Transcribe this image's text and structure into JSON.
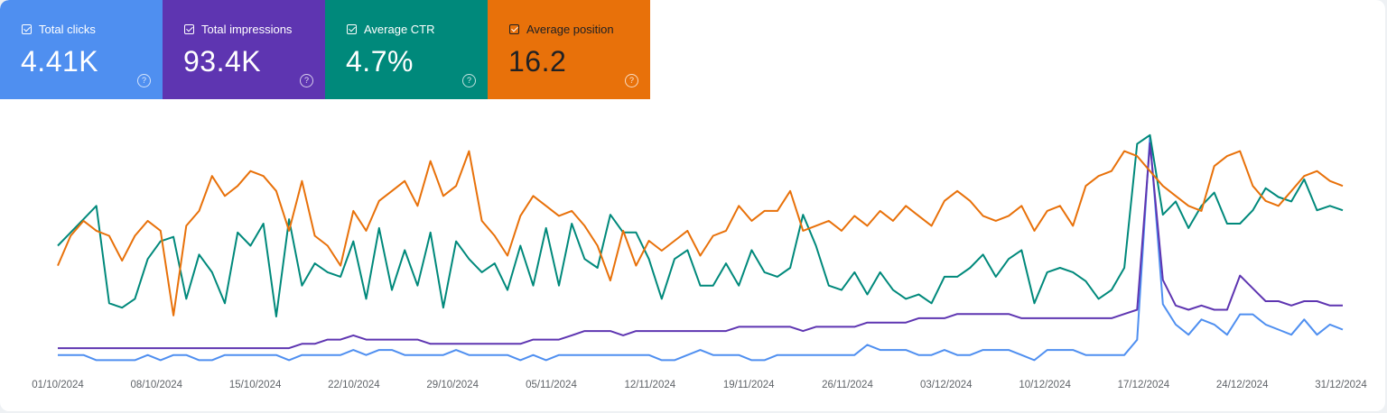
{
  "metrics": [
    {
      "label": "Total clicks",
      "value": "4.41K",
      "color": "#4f8ff0",
      "help_icon": "question-circle-icon"
    },
    {
      "label": "Total impressions",
      "value": "93.4K",
      "color": "#5e35b1",
      "help_icon": "question-circle-icon"
    },
    {
      "label": "Average CTR",
      "value": "4.7%",
      "color": "#00897b",
      "help_icon": "question-circle-icon"
    },
    {
      "label": "Average position",
      "value": "16.2",
      "color": "#e8710a",
      "help_icon": "question-circle-icon"
    }
  ],
  "chart_data": {
    "type": "line",
    "x_tick_labels": [
      "01/10/2024",
      "08/10/2024",
      "15/10/2024",
      "22/10/2024",
      "29/10/2024",
      "05/11/2024",
      "12/11/2024",
      "19/11/2024",
      "26/11/2024",
      "03/12/2024",
      "10/12/2024",
      "17/12/2024",
      "24/12/2024",
      "31/12/2024"
    ],
    "x_start": "01/10/2024",
    "x_end": "31/12/2024",
    "grid": false,
    "legend": "none",
    "series": [
      {
        "key": "clicks",
        "color": "#4f8ff0",
        "values": [
          2,
          2,
          2,
          1,
          1,
          1,
          1,
          2,
          1,
          2,
          2,
          1,
          1,
          2,
          2,
          2,
          2,
          2,
          1,
          2,
          2,
          2,
          2,
          3,
          2,
          3,
          3,
          2,
          2,
          2,
          2,
          3,
          2,
          2,
          2,
          2,
          1,
          2,
          1,
          2,
          2,
          2,
          2,
          2,
          2,
          2,
          2,
          1,
          1,
          2,
          3,
          2,
          2,
          2,
          1,
          1,
          2,
          2,
          2,
          2,
          2,
          2,
          2,
          4,
          3,
          3,
          3,
          2,
          2,
          3,
          2,
          2,
          3,
          3,
          3,
          2,
          1,
          3,
          3,
          3,
          2,
          2,
          2,
          2,
          5,
          45,
          12,
          8,
          6,
          9,
          8,
          6,
          10,
          10,
          8,
          7,
          6,
          9,
          6,
          8,
          7
        ]
      },
      {
        "key": "impressions",
        "color": "#5e35b1",
        "values": [
          4,
          4,
          4,
          4,
          4,
          4,
          4,
          4,
          4,
          4,
          4,
          4,
          4,
          4,
          4,
          4,
          4,
          4,
          4,
          5,
          5,
          6,
          6,
          7,
          6,
          6,
          6,
          6,
          6,
          5,
          5,
          5,
          5,
          5,
          5,
          5,
          5,
          6,
          6,
          6,
          7,
          8,
          8,
          8,
          7,
          8,
          8,
          8,
          8,
          8,
          8,
          8,
          8,
          9,
          9,
          9,
          9,
          9,
          8,
          9,
          9,
          9,
          9,
          10,
          10,
          10,
          10,
          11,
          11,
          11,
          12,
          12,
          12,
          12,
          12,
          11,
          11,
          11,
          11,
          11,
          11,
          11,
          11,
          12,
          13,
          52,
          20,
          14,
          13,
          14,
          13,
          13,
          21,
          18,
          15,
          15,
          14,
          15,
          15,
          14,
          14
        ]
      },
      {
        "key": "ctr",
        "color": "#00897b",
        "values": [
          5.5,
          5.8,
          6.1,
          6.4,
          4.2,
          4.1,
          4.3,
          5.2,
          5.6,
          5.7,
          4.3,
          5.3,
          4.9,
          4.2,
          5.8,
          5.5,
          6.0,
          3.9,
          6.1,
          4.6,
          5.1,
          4.9,
          4.8,
          5.6,
          4.3,
          5.9,
          4.5,
          5.4,
          4.6,
          5.8,
          4.1,
          5.6,
          5.2,
          4.9,
          5.1,
          4.5,
          5.5,
          4.6,
          5.9,
          4.6,
          6.0,
          5.2,
          5.0,
          6.2,
          5.8,
          5.8,
          5.2,
          4.3,
          5.2,
          5.4,
          4.6,
          4.6,
          5.1,
          4.6,
          5.4,
          4.9,
          4.8,
          5.0,
          6.2,
          5.5,
          4.6,
          4.5,
          4.9,
          4.4,
          4.9,
          4.5,
          4.3,
          4.4,
          4.2,
          4.8,
          4.8,
          5.0,
          5.3,
          4.8,
          5.2,
          5.4,
          4.2,
          4.9,
          5.0,
          4.9,
          4.7,
          4.3,
          4.5,
          5.0,
          7.8,
          8.0,
          6.2,
          6.5,
          5.9,
          6.4,
          6.7,
          6.0,
          6.0,
          6.3,
          6.8,
          6.6,
          6.5,
          7.0,
          6.3,
          6.4,
          6.3
        ]
      },
      {
        "key": "position",
        "color": "#e8710a",
        "values": [
          16.8,
          16.2,
          15.9,
          16.1,
          16.2,
          16.7,
          16.2,
          15.9,
          16.1,
          17.8,
          16.0,
          15.7,
          15.0,
          15.4,
          15.2,
          14.9,
          15.0,
          15.3,
          16.1,
          15.1,
          16.2,
          16.4,
          16.8,
          15.7,
          16.1,
          15.5,
          15.3,
          15.1,
          15.6,
          14.7,
          15.4,
          15.2,
          14.5,
          15.9,
          16.2,
          16.6,
          15.8,
          15.4,
          15.6,
          15.8,
          15.7,
          16.0,
          16.4,
          17.1,
          16.1,
          16.8,
          16.3,
          16.5,
          16.3,
          16.1,
          16.6,
          16.2,
          16.1,
          15.6,
          15.9,
          15.7,
          15.7,
          15.3,
          16.1,
          16.0,
          15.9,
          16.1,
          15.8,
          16.0,
          15.7,
          15.9,
          15.6,
          15.8,
          16.0,
          15.5,
          15.3,
          15.5,
          15.8,
          15.9,
          15.8,
          15.6,
          16.1,
          15.7,
          15.6,
          16.0,
          15.2,
          15.0,
          14.9,
          14.5,
          14.6,
          14.9,
          15.2,
          15.4,
          15.6,
          15.7,
          14.8,
          14.6,
          14.5,
          15.2,
          15.5,
          15.6,
          15.3,
          15.0,
          14.9,
          15.1,
          15.2
        ]
      }
    ]
  }
}
